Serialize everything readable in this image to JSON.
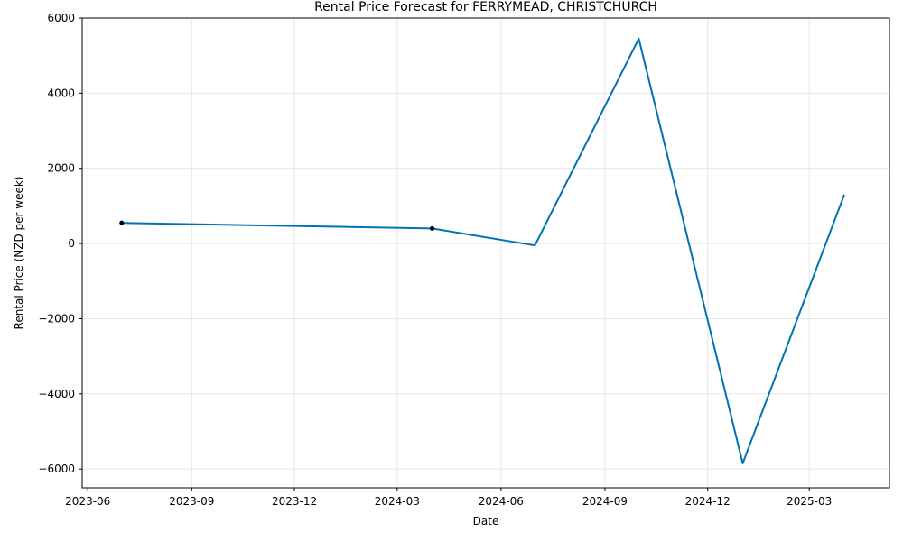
{
  "chart_data": {
    "type": "line",
    "title": "Rental Price Forecast for FERRYMEAD, CHRISTCHURCH",
    "xlabel": "Date",
    "ylabel": "Rental Price (NZD per week)",
    "x_ticks": [
      {
        "date": "2023-06-01",
        "label": "2023-06"
      },
      {
        "date": "2023-09-01",
        "label": "2023-09"
      },
      {
        "date": "2023-12-01",
        "label": "2023-12"
      },
      {
        "date": "2024-03-01",
        "label": "2024-03"
      },
      {
        "date": "2024-06-01",
        "label": "2024-06"
      },
      {
        "date": "2024-09-01",
        "label": "2024-09"
      },
      {
        "date": "2024-12-01",
        "label": "2024-12"
      },
      {
        "date": "2025-03-01",
        "label": "2025-03"
      }
    ],
    "xlim": [
      "2023-05-27",
      "2025-05-11"
    ],
    "y_ticks": [
      -6000,
      -4000,
      -2000,
      0,
      2000,
      4000,
      6000
    ],
    "y_tick_labels": [
      "−6000",
      "−4000",
      "−2000",
      "0",
      "2000",
      "4000",
      "6000"
    ],
    "ylim": [
      -6500,
      6000
    ],
    "grid": true,
    "line_color": "#0072B2",
    "marker_color": "#000000",
    "series": [
      {
        "x": [
          "2023-07-01",
          "2024-04-01",
          "2024-07-01",
          "2024-10-01",
          "2025-01-01",
          "2025-04-01"
        ],
        "y": [
          550,
          400,
          -50,
          5450,
          -5850,
          1300
        ]
      }
    ],
    "observed_points": [
      {
        "x": "2023-07-01",
        "y": 550
      },
      {
        "x": "2024-04-01",
        "y": 400
      }
    ]
  }
}
